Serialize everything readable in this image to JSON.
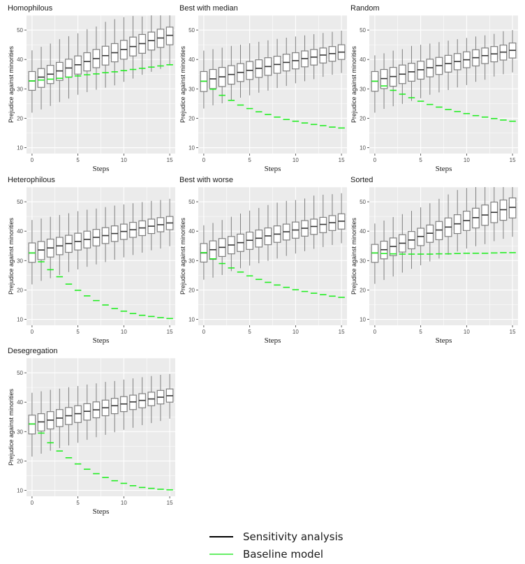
{
  "chart_data": [
    {
      "type": "box",
      "title": "Homophilous",
      "xlabel": "Steps",
      "ylabel": "Prejudice against minorities",
      "x": [
        0,
        1,
        2,
        3,
        4,
        5,
        6,
        7,
        8,
        9,
        10,
        11,
        12,
        13,
        14,
        15
      ],
      "xticks": [
        0,
        5,
        10,
        15
      ],
      "yticks": [
        10,
        20,
        30,
        40,
        50
      ],
      "ylim": [
        8,
        55
      ],
      "grid": true,
      "boxes": {
        "median": [
          32.7,
          34.0,
          35.0,
          36.1,
          37.1,
          38.2,
          39.3,
          40.3,
          41.3,
          42.3,
          43.4,
          44.4,
          45.4,
          46.4,
          47.3,
          48.2
        ],
        "q1": [
          29.5,
          30.5,
          31.8,
          32.9,
          34.0,
          35.0,
          36.1,
          37.2,
          38.1,
          39.2,
          40.1,
          41.2,
          42.1,
          43.2,
          44.1,
          45.0
        ],
        "q3": [
          35.9,
          36.9,
          38.0,
          39.0,
          40.1,
          41.2,
          42.3,
          43.4,
          44.5,
          45.4,
          46.5,
          47.6,
          48.5,
          49.3,
          50.3,
          51.0
        ],
        "whisker_low": [
          21.9,
          23.0,
          24.2,
          25.5,
          26.7,
          28.0,
          28.9,
          29.7,
          30.4,
          31.2,
          32.4,
          33.5,
          34.8,
          35.8,
          36.8,
          38.0
        ],
        "whisker_high": [
          43.1,
          44.3,
          45.4,
          46.9,
          47.9,
          48.9,
          50.3,
          51.2,
          52.8,
          53.7,
          54.4,
          54.8,
          54.6,
          55.0,
          55.0,
          55.0
        ]
      },
      "baseline": [
        32.7,
        33.0,
        33.3,
        33.6,
        34.0,
        34.4,
        34.8,
        35.1,
        35.5,
        35.8,
        36.2,
        36.6,
        37.0,
        37.4,
        37.8,
        38.2
      ]
    },
    {
      "type": "box",
      "title": "Best with median",
      "xlabel": "Steps",
      "ylabel": "Prejudice against minorities",
      "x": [
        0,
        1,
        2,
        3,
        4,
        5,
        6,
        7,
        8,
        9,
        10,
        11,
        12,
        13,
        14,
        15
      ],
      "xticks": [
        0,
        5,
        10,
        15
      ],
      "yticks": [
        10,
        20,
        30,
        40,
        50
      ],
      "ylim": [
        8,
        55
      ],
      "grid": true,
      "boxes": {
        "median": [
          32.6,
          33.4,
          34.1,
          34.9,
          35.6,
          36.3,
          37.0,
          37.6,
          38.3,
          39.0,
          39.6,
          40.3,
          40.8,
          41.5,
          42.0,
          42.5
        ],
        "q1": [
          29.1,
          30.1,
          30.8,
          31.6,
          32.5,
          33.2,
          33.9,
          34.6,
          35.3,
          36.1,
          36.8,
          37.5,
          38.1,
          38.8,
          39.4,
          40.0
        ],
        "q3": [
          35.9,
          36.6,
          37.3,
          37.9,
          38.6,
          39.3,
          39.9,
          40.6,
          41.1,
          41.8,
          42.3,
          42.9,
          43.4,
          43.9,
          44.4,
          45.0
        ],
        "whisker_low": [
          23.3,
          24.4,
          25.1,
          26.2,
          27.0,
          27.8,
          28.7,
          29.4,
          30.3,
          31.0,
          31.9,
          32.6,
          33.3,
          34.1,
          34.8,
          35.4
        ],
        "whisker_high": [
          43.0,
          43.5,
          44.0,
          44.6,
          45.0,
          45.5,
          46.0,
          46.5,
          47.0,
          47.4,
          47.8,
          48.2,
          48.6,
          49.0,
          49.4,
          49.8
        ]
      },
      "baseline": [
        32.6,
        29.9,
        27.8,
        26.1,
        24.5,
        23.3,
        22.2,
        21.3,
        20.4,
        19.6,
        19.0,
        18.4,
        17.9,
        17.5,
        17.0,
        16.7
      ]
    },
    {
      "type": "box",
      "title": "Random",
      "xlabel": "Steps",
      "ylabel": "Prejudice against minorities",
      "x": [
        0,
        1,
        2,
        3,
        4,
        5,
        6,
        7,
        8,
        9,
        10,
        11,
        12,
        13,
        14,
        15
      ],
      "xticks": [
        0,
        5,
        10,
        15
      ],
      "yticks": [
        10,
        20,
        30,
        40,
        50
      ],
      "ylim": [
        8,
        55
      ],
      "grid": true,
      "boxes": {
        "median": [
          32.6,
          33.5,
          34.2,
          35.0,
          35.8,
          36.5,
          37.2,
          37.9,
          38.6,
          39.3,
          39.9,
          40.6,
          41.3,
          41.9,
          42.5,
          43.1
        ],
        "q1": [
          29.2,
          30.1,
          30.9,
          31.8,
          32.6,
          33.3,
          34.1,
          34.9,
          35.7,
          36.5,
          37.2,
          37.8,
          38.6,
          39.2,
          39.8,
          40.5
        ],
        "q3": [
          35.9,
          36.6,
          37.3,
          38.1,
          38.7,
          39.4,
          40.1,
          40.7,
          41.4,
          42.0,
          42.6,
          43.3,
          43.9,
          44.4,
          44.9,
          45.6
        ],
        "whisker_low": [
          21.9,
          23.2,
          24.1,
          24.9,
          25.9,
          26.8,
          28.0,
          28.8,
          29.6,
          30.5,
          31.3,
          32.4,
          33.1,
          34.2,
          35.0,
          35.6
        ],
        "whisker_high": [
          41.4,
          42.1,
          43.0,
          43.5,
          44.6,
          45.0,
          45.4,
          45.9,
          46.4,
          46.9,
          47.3,
          47.8,
          48.2,
          48.7,
          49.6,
          50.0
        ]
      },
      "baseline": [
        32.6,
        31.0,
        29.5,
        28.2,
        27.0,
        25.8,
        24.7,
        23.8,
        23.0,
        22.3,
        21.6,
        20.9,
        20.4,
        19.9,
        19.4,
        19.0
      ]
    },
    {
      "type": "box",
      "title": "Heterophilous",
      "xlabel": "Steps",
      "ylabel": "Prejudice against minorities",
      "x": [
        0,
        1,
        2,
        3,
        4,
        5,
        6,
        7,
        8,
        9,
        10,
        11,
        12,
        13,
        14,
        15
      ],
      "xticks": [
        0,
        5,
        10,
        15
      ],
      "yticks": [
        10,
        20,
        30,
        40,
        50
      ],
      "ylim": [
        8,
        55
      ],
      "grid": true,
      "boxes": {
        "median": [
          32.6,
          33.6,
          34.3,
          35.0,
          35.8,
          36.5,
          37.2,
          37.9,
          38.5,
          39.2,
          39.9,
          40.5,
          41.1,
          41.7,
          42.2,
          42.8
        ],
        "q1": [
          29.4,
          30.3,
          31.2,
          32.0,
          32.8,
          33.6,
          34.3,
          35.0,
          35.8,
          36.5,
          37.2,
          37.9,
          38.5,
          39.2,
          39.8,
          40.5
        ],
        "q3": [
          36.0,
          36.5,
          37.3,
          37.9,
          38.6,
          39.3,
          40.0,
          40.6,
          41.2,
          41.8,
          42.4,
          43.0,
          43.5,
          44.1,
          44.6,
          45.0
        ],
        "whisker_low": [
          21.9,
          23.1,
          24.0,
          25.1,
          26.1,
          27.0,
          27.9,
          28.7,
          29.5,
          30.3,
          31.1,
          31.9,
          32.7,
          33.5,
          34.1,
          34.9
        ],
        "whisker_high": [
          43.8,
          44.3,
          44.9,
          45.5,
          46.1,
          46.8,
          47.3,
          47.7,
          48.2,
          48.7,
          49.1,
          49.5,
          49.9,
          50.3,
          50.6,
          51.0
        ]
      },
      "baseline": [
        32.6,
        29.6,
        26.9,
        24.5,
        22.0,
        19.9,
        18.0,
        16.4,
        14.9,
        13.7,
        12.8,
        12.0,
        11.4,
        11.0,
        10.6,
        10.3
      ]
    },
    {
      "type": "box",
      "title": "Best with worse",
      "xlabel": "Steps",
      "ylabel": "Prejudice against minorities",
      "x": [
        0,
        1,
        2,
        3,
        4,
        5,
        6,
        7,
        8,
        9,
        10,
        11,
        12,
        13,
        14,
        15
      ],
      "xticks": [
        0,
        5,
        10,
        15
      ],
      "yticks": [
        10,
        20,
        30,
        40,
        50
      ],
      "ylim": [
        8,
        55
      ],
      "grid": true,
      "boxes": {
        "median": [
          32.6,
          33.7,
          34.5,
          35.3,
          36.1,
          36.9,
          37.6,
          38.4,
          39.0,
          39.8,
          40.4,
          41.0,
          41.6,
          42.3,
          42.9,
          43.4
        ],
        "q1": [
          29.5,
          30.4,
          31.4,
          32.3,
          33.1,
          33.8,
          34.6,
          35.4,
          36.2,
          37.0,
          37.6,
          38.3,
          38.9,
          39.5,
          40.2,
          40.7
        ],
        "q3": [
          35.8,
          36.7,
          37.5,
          38.2,
          39.0,
          39.7,
          40.4,
          41.1,
          41.8,
          42.4,
          43.1,
          43.6,
          44.1,
          44.7,
          45.3,
          45.9
        ],
        "whisker_low": [
          23.5,
          24.2,
          25.1,
          26.4,
          27.4,
          28.3,
          29.1,
          29.9,
          30.7,
          31.6,
          32.4,
          33.2,
          34.0,
          34.6,
          35.3,
          35.9
        ],
        "whisker_high": [
          42.0,
          42.8,
          43.8,
          44.9,
          46.0,
          47.0,
          47.9,
          48.9,
          49.7,
          50.3,
          50.6,
          51.1,
          52.1,
          52.4,
          52.6,
          52.9
        ]
      },
      "baseline": [
        32.7,
        30.6,
        29.0,
        27.5,
        26.1,
        24.8,
        23.6,
        22.6,
        21.7,
        20.9,
        20.1,
        19.5,
        18.9,
        18.4,
        17.9,
        17.5
      ]
    },
    {
      "type": "box",
      "title": "Sorted",
      "xlabel": "Steps",
      "ylabel": "Prejudice against minorities",
      "x": [
        0,
        1,
        2,
        3,
        4,
        5,
        6,
        7,
        8,
        9,
        10,
        11,
        12,
        13,
        14,
        15
      ],
      "xticks": [
        0,
        5,
        10,
        15
      ],
      "yticks": [
        10,
        20,
        30,
        40,
        50
      ],
      "ylim": [
        8,
        55
      ],
      "grid": true,
      "boxes": {
        "median": [
          32.6,
          33.7,
          34.8,
          35.9,
          37.0,
          38.2,
          39.3,
          40.4,
          41.4,
          42.5,
          43.6,
          44.6,
          45.5,
          46.4,
          47.3,
          48.1
        ],
        "q1": [
          29.4,
          30.6,
          31.7,
          32.9,
          34.0,
          35.1,
          36.2,
          37.1,
          38.2,
          39.2,
          40.2,
          41.1,
          42.0,
          42.9,
          43.7,
          44.5
        ],
        "q3": [
          35.5,
          36.6,
          37.7,
          38.8,
          39.9,
          41.0,
          42.1,
          43.3,
          44.5,
          45.6,
          46.8,
          47.8,
          48.9,
          49.9,
          50.6,
          51.3
        ],
        "whisker_low": [
          22.1,
          23.4,
          24.6,
          25.9,
          27.2,
          28.4,
          29.7,
          30.7,
          32.0,
          33.1,
          34.1,
          34.9,
          35.6,
          36.6,
          37.4,
          38.1
        ],
        "whisker_high": [
          42.6,
          43.6,
          44.8,
          45.8,
          46.9,
          48.1,
          49.5,
          51.0,
          52.5,
          54.0,
          54.7,
          55.0,
          55.0,
          55.0,
          55.0,
          55.0
        ]
      },
      "baseline": [
        32.6,
        32.4,
        32.3,
        32.2,
        32.2,
        32.2,
        32.2,
        32.3,
        32.3,
        32.4,
        32.5,
        32.5,
        32.5,
        32.6,
        32.7,
        32.7
      ]
    },
    {
      "type": "box",
      "title": "Desegregation",
      "xlabel": "Steps",
      "ylabel": "Prejudice against minorities",
      "x": [
        0,
        1,
        2,
        3,
        4,
        5,
        6,
        7,
        8,
        9,
        10,
        11,
        12,
        13,
        14,
        15
      ],
      "xticks": [
        0,
        5,
        10,
        15
      ],
      "yticks": [
        10,
        20,
        30,
        40,
        50
      ],
      "ylim": [
        8,
        55
      ],
      "grid": true,
      "boxes": {
        "median": [
          32.6,
          33.3,
          33.9,
          34.6,
          35.4,
          36.1,
          36.9,
          37.4,
          38.1,
          38.8,
          39.4,
          40.1,
          40.6,
          41.1,
          41.7,
          42.2
        ],
        "q1": [
          29.2,
          30.2,
          30.9,
          31.7,
          32.4,
          33.1,
          33.9,
          34.7,
          35.4,
          36.1,
          36.8,
          37.5,
          38.1,
          38.8,
          39.4,
          40.0
        ],
        "q3": [
          35.6,
          36.1,
          36.8,
          37.5,
          38.2,
          38.8,
          39.5,
          40.1,
          40.7,
          41.3,
          41.9,
          42.4,
          42.9,
          43.4,
          44.0,
          44.5
        ],
        "whisker_low": [
          21.5,
          22.5,
          23.5,
          24.4,
          25.3,
          26.2,
          27.2,
          28.1,
          28.9,
          29.8,
          30.6,
          31.3,
          32.2,
          32.9,
          33.6,
          34.4
        ],
        "whisker_high": [
          43.2,
          43.7,
          44.2,
          44.6,
          45.1,
          45.5,
          46.0,
          46.4,
          46.9,
          47.2,
          47.7,
          48.1,
          48.5,
          48.9,
          49.3,
          49.6
        ]
      },
      "baseline": [
        32.6,
        29.5,
        26.2,
        23.4,
        21.1,
        19.0,
        17.2,
        15.7,
        14.4,
        13.3,
        12.4,
        11.6,
        11.0,
        10.7,
        10.4,
        10.2
      ]
    }
  ],
  "legend": {
    "items": [
      {
        "label": "Sensitivity analysis",
        "color": "#000000"
      },
      {
        "label": "Baseline model",
        "color": "#66ee66"
      }
    ]
  },
  "colors": {
    "panel_bg": "#ebebeb",
    "grid": "#ffffff",
    "box_stroke": "#7f7f7f",
    "median": "#333333",
    "baseline": "#22ee22",
    "axis_text": "#4d4d4d"
  }
}
